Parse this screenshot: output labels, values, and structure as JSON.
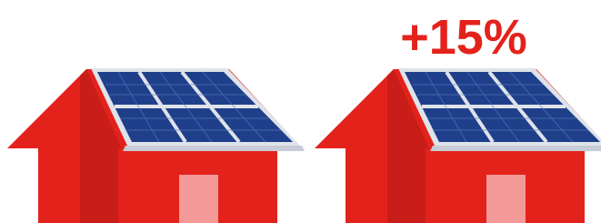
{
  "label": "+15%"
}
